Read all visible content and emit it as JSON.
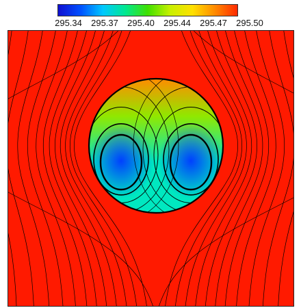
{
  "colorbar": {
    "colors": [
      "#1010d0",
      "#0050ff",
      "#00c8ff",
      "#00e890",
      "#40e000",
      "#c8f000",
      "#ffe000",
      "#ff8a00",
      "#ff2a00"
    ],
    "tick_labels": [
      "295.34",
      "295.37",
      "295.40",
      "295.44",
      "295.47",
      "295.50"
    ]
  },
  "field": {
    "background_color": "#ff1a00",
    "drop_colors": {
      "top": "#ff8c00",
      "upper": "#90e800",
      "middle": "#00e8c0",
      "vortex_core": "#0040ff"
    },
    "streamline_color": "#000000"
  }
}
